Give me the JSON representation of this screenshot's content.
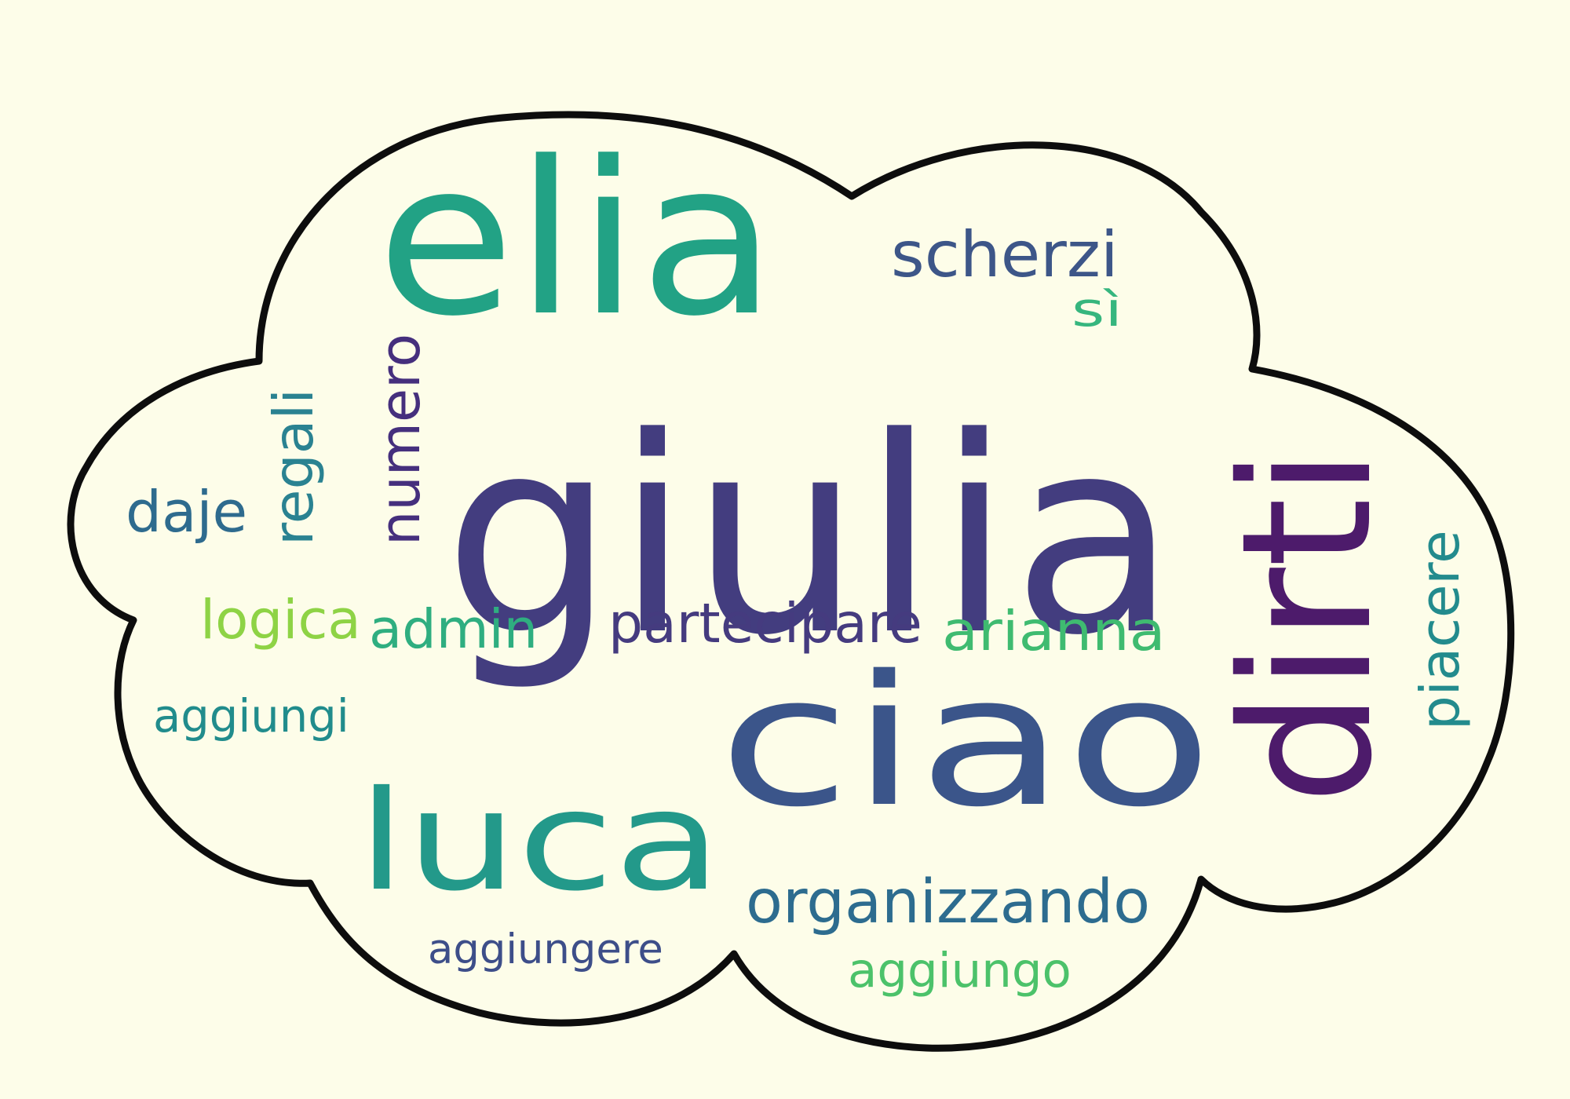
{
  "background_color": "#fdfde9",
  "outline_color": "#0d0d0d",
  "words": [
    {
      "key": "giulia",
      "text": "giulia",
      "color": "#433d7f"
    },
    {
      "key": "elia",
      "text": "elia",
      "color": "#22a285"
    },
    {
      "key": "ciao",
      "text": "ciao",
      "color": "#3b558a"
    },
    {
      "key": "luca",
      "text": "luca",
      "color": "#23998a"
    },
    {
      "key": "dirti",
      "text": "dirti",
      "color": "#4d1b6b"
    },
    {
      "key": "scherzi",
      "text": "scherzi",
      "color": "#3d5688"
    },
    {
      "key": "si",
      "text": "sì",
      "color": "#36b67e"
    },
    {
      "key": "numero",
      "text": "numero",
      "color": "#452f7d"
    },
    {
      "key": "regali",
      "text": "regali",
      "color": "#2a8291"
    },
    {
      "key": "daje",
      "text": "daje",
      "color": "#2e6b8e"
    },
    {
      "key": "logica",
      "text": "logica",
      "color": "#8ed345"
    },
    {
      "key": "admin",
      "text": "admin",
      "color": "#2fae80"
    },
    {
      "key": "partecipare",
      "text": "partecipare",
      "color": "#453b7f"
    },
    {
      "key": "arianna",
      "text": "arianna",
      "color": "#3fbb70"
    },
    {
      "key": "piacere",
      "text": "piacere",
      "color": "#238b8d"
    },
    {
      "key": "aggiungi",
      "text": "aggiungi",
      "color": "#218c8c"
    },
    {
      "key": "organizzando",
      "text": "organizzando",
      "color": "#2d6c8f"
    },
    {
      "key": "aggiungere",
      "text": "aggiungere",
      "color": "#3d4e89"
    },
    {
      "key": "aggiungo",
      "text": "aggiungo",
      "color": "#4cc26a"
    }
  ]
}
